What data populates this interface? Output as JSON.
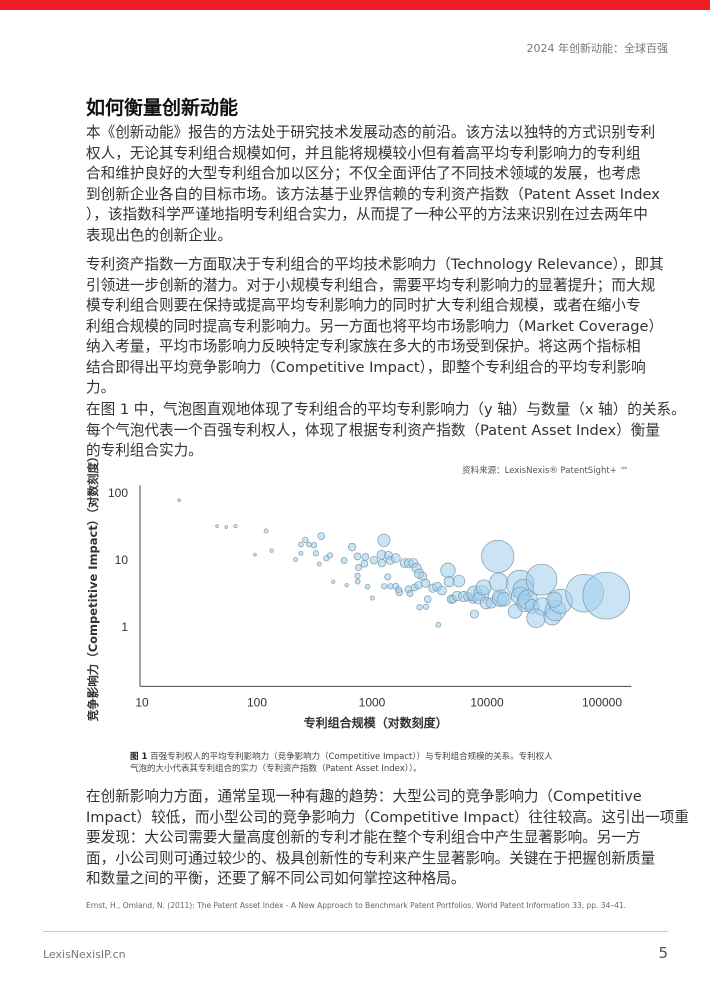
{
  "header": {
    "running_title": "2024 年创新动能：全球百强",
    "accent_color": "#ee1c25"
  },
  "section": {
    "title": "如何衡量创新动能"
  },
  "paragraphs": [
    [
      "本《创新动能》报告的方法处于研究技术发展动态的前沿。该方法以独特的方式识别专利",
      "权人，无论其专利组合规模如何，并且能将规模较小但有着高平均专利影响力的专利组",
      "合和维护良好的大型专利组合加以区分；不仅全面评估了不同技术领域的发展，也考虑",
      "到创新企业各自的目标市场。该方法基于业界信赖的专利资产指数（Patent Asset Index",
      "），该指数科学严谨地指明专利组合实力，从而提了一种公平的方法来识别在过去两年中",
      "表现出色的创新企业。"
    ],
    [
      "专利资产指数一方面取决于专利组合的平均技术影响力（Technology Relevance），即其",
      "引领进一步创新的潜力。对于小规模专利组合，需要平均专利影响力的显著提升；而大规",
      "模专利组合则要在保持或提高平均专利影响力的同时扩大专利组合规模，或者在缩小专",
      "利组合规模的同时提高专利影响力。另一方面也将平均市场影响力（Market Coverage）",
      "纳入考量，平均市场影响力反映特定专利家族在多大的市场受到保护。将这两个指标相",
      "结合即得出平均竞争影响力（Competitive Impact），即整个专利组合的平均专利影响",
      "力。"
    ],
    [
      "在图 1 中，气泡图直观地体现了专利组合的平均专利影响力（y 轴）与数量（x 轴）的关系。",
      "每个气泡代表一个百强专利权人，体现了根据专利资产指数（Patent Asset Index）衡量",
      "的专利组合实力。"
    ],
    [
      "在创新影响力方面，通常呈现一种有趣的趋势：大型公司的竞争影响力（Competitive",
      "Impact）较低，而小型公司的竞争影响力（Competitive Impact）往往较高。这引出一项重",
      "要发现：大公司需要大量高度创新的专利才能在整个专利组合中产生显著影响。另一方",
      "面，小公司则可通过较少的、极具创新性的专利来产生显著影响。关键在于把握创新质量",
      "和数量之间的平衡，还要了解不同公司如何掌控这种格局。"
    ]
  ],
  "figure": {
    "source": "资料来源：LexisNexis® PatentSight+ ™",
    "caption_label": "图 1",
    "caption_line1": " 百强专利权人的平均专利影响力（竞争影响力（Competitive Impact））与专利组合规模的关系。专利权人",
    "caption_line2": "气泡的大小代表其专利组合的实力（专利资产指数（Patent Asset Index））。"
  },
  "chart_data": {
    "type": "scatter",
    "subtype": "bubble",
    "xlabel": "专利组合规模（对数刻度）",
    "ylabel": "竞争影响力（Competitive Impact）（对数刻度）",
    "xscale": "log",
    "yscale": "log",
    "xlim": [
      10,
      180000
    ],
    "ylim": [
      0.13,
      130
    ],
    "xticks": [
      "10",
      "100",
      "1000",
      "10000",
      "100000"
    ],
    "yticks": [
      "1",
      "10",
      "100"
    ],
    "grid": false,
    "bubble_color": "#9fcdee",
    "bubble_stroke": "#7f9aaa",
    "points": [
      {
        "x": 21,
        "y": 78,
        "size": 16
      },
      {
        "x": 45,
        "y": 32,
        "size": 16
      },
      {
        "x": 54,
        "y": 31,
        "size": 16
      },
      {
        "x": 65,
        "y": 32,
        "size": 25
      },
      {
        "x": 120,
        "y": 27,
        "size": 36
      },
      {
        "x": 96,
        "y": 12,
        "size": 16
      },
      {
        "x": 134,
        "y": 13.8,
        "size": 25
      },
      {
        "x": 263,
        "y": 20,
        "size": 64
      },
      {
        "x": 241,
        "y": 17,
        "size": 49
      },
      {
        "x": 283,
        "y": 17,
        "size": 49
      },
      {
        "x": 313,
        "y": 16.6,
        "size": 64
      },
      {
        "x": 362,
        "y": 22.8,
        "size": 100
      },
      {
        "x": 241,
        "y": 12.6,
        "size": 36
      },
      {
        "x": 325,
        "y": 12.6,
        "size": 64
      },
      {
        "x": 216,
        "y": 10.1,
        "size": 36
      },
      {
        "x": 401,
        "y": 10.6,
        "size": 64
      },
      {
        "x": 431,
        "y": 11.7,
        "size": 64
      },
      {
        "x": 347,
        "y": 8.7,
        "size": 36
      },
      {
        "x": 460,
        "y": 4.75,
        "size": 25
      },
      {
        "x": 602,
        "y": 4.2,
        "size": 25
      },
      {
        "x": 572,
        "y": 9.8,
        "size": 81
      },
      {
        "x": 671,
        "y": 15.6,
        "size": 121
      },
      {
        "x": 748,
        "y": 11.3,
        "size": 100
      },
      {
        "x": 877,
        "y": 11.1,
        "size": 100
      },
      {
        "x": 764,
        "y": 7.7,
        "size": 81
      },
      {
        "x": 859,
        "y": 8.8,
        "size": 100
      },
      {
        "x": 748,
        "y": 5.8,
        "size": 64
      },
      {
        "x": 750,
        "y": 4.75,
        "size": 49
      },
      {
        "x": 916,
        "y": 4.0,
        "size": 49
      },
      {
        "x": 1007,
        "y": 2.7,
        "size": 36
      },
      {
        "x": 1040,
        "y": 9.9,
        "size": 121
      },
      {
        "x": 1210,
        "y": 12,
        "size": 169
      },
      {
        "x": 1270,
        "y": 19.7,
        "size": 324
      },
      {
        "x": 1390,
        "y": 11.7,
        "size": 144
      },
      {
        "x": 1440,
        "y": 9.9,
        "size": 144
      },
      {
        "x": 1610,
        "y": 10.7,
        "size": 169
      },
      {
        "x": 1220,
        "y": 9.0,
        "size": 121
      },
      {
        "x": 1370,
        "y": 5.6,
        "size": 81
      },
      {
        "x": 1280,
        "y": 4.05,
        "size": 64
      },
      {
        "x": 1450,
        "y": 4.05,
        "size": 64
      },
      {
        "x": 1610,
        "y": 4.05,
        "size": 81
      },
      {
        "x": 1730,
        "y": 3.3,
        "size": 100
      },
      {
        "x": 1700,
        "y": 3.6,
        "size": 81
      },
      {
        "x": 1920,
        "y": 9.0,
        "size": 169
      },
      {
        "x": 2090,
        "y": 9.0,
        "size": 169
      },
      {
        "x": 2290,
        "y": 9.0,
        "size": 169
      },
      {
        "x": 2440,
        "y": 7.6,
        "size": 196
      },
      {
        "x": 2570,
        "y": 6.25,
        "size": 196
      },
      {
        "x": 2760,
        "y": 5.7,
        "size": 144
      },
      {
        "x": 2920,
        "y": 4.5,
        "size": 144
      },
      {
        "x": 2070,
        "y": 3.65,
        "size": 100
      },
      {
        "x": 2140,
        "y": 3.15,
        "size": 81
      },
      {
        "x": 2350,
        "y": 3.9,
        "size": 100
      },
      {
        "x": 2530,
        "y": 4.2,
        "size": 121
      },
      {
        "x": 3050,
        "y": 2.6,
        "size": 100
      },
      {
        "x": 2590,
        "y": 1.97,
        "size": 64
      },
      {
        "x": 2950,
        "y": 2.0,
        "size": 64
      },
      {
        "x": 3380,
        "y": 3.8,
        "size": 144
      },
      {
        "x": 3690,
        "y": 4.0,
        "size": 169
      },
      {
        "x": 4050,
        "y": 3.5,
        "size": 169
      },
      {
        "x": 3770,
        "y": 1.08,
        "size": 49
      },
      {
        "x": 4580,
        "y": 7.0,
        "size": 441
      },
      {
        "x": 4690,
        "y": 4.75,
        "size": 225
      },
      {
        "x": 4930,
        "y": 2.6,
        "size": 169
      },
      {
        "x": 5040,
        "y": 2.6,
        "size": 121
      },
      {
        "x": 5700,
        "y": 4.85,
        "size": 289
      },
      {
        "x": 5500,
        "y": 2.9,
        "size": 196
      },
      {
        "x": 6270,
        "y": 2.85,
        "size": 225
      },
      {
        "x": 6840,
        "y": 2.85,
        "size": 169
      },
      {
        "x": 7520,
        "y": 2.6,
        "size": 144
      },
      {
        "x": 7780,
        "y": 3.15,
        "size": 484
      },
      {
        "x": 7780,
        "y": 1.56,
        "size": 144
      },
      {
        "x": 8940,
        "y": 3.2,
        "size": 484
      },
      {
        "x": 8490,
        "y": 2.7,
        "size": 289
      },
      {
        "x": 9330,
        "y": 3.9,
        "size": 484
      },
      {
        "x": 9820,
        "y": 2.28,
        "size": 289
      },
      {
        "x": 10900,
        "y": 2.28,
        "size": 225
      },
      {
        "x": 12400,
        "y": 11.3,
        "size": 2209
      },
      {
        "x": 12650,
        "y": 4.65,
        "size": 729
      },
      {
        "x": 12900,
        "y": 2.6,
        "size": 400
      },
      {
        "x": 13100,
        "y": 2.7,
        "size": 576
      },
      {
        "x": 14100,
        "y": 2.6,
        "size": 400
      },
      {
        "x": 17500,
        "y": 1.71,
        "size": 400
      },
      {
        "x": 19400,
        "y": 4.4,
        "size": 1600
      },
      {
        "x": 20700,
        "y": 3.6,
        "size": 900
      },
      {
        "x": 19500,
        "y": 2.9,
        "size": 676
      },
      {
        "x": 21500,
        "y": 2.28,
        "size": 625
      },
      {
        "x": 22600,
        "y": 2.56,
        "size": 784
      },
      {
        "x": 24700,
        "y": 2.03,
        "size": 400
      },
      {
        "x": 29800,
        "y": 5.1,
        "size": 2025
      },
      {
        "x": 30200,
        "y": 2.03,
        "size": 625
      },
      {
        "x": 26700,
        "y": 1.35,
        "size": 729
      },
      {
        "x": 37000,
        "y": 1.44,
        "size": 625
      },
      {
        "x": 39300,
        "y": 1.77,
        "size": 900
      },
      {
        "x": 43500,
        "y": 2.42,
        "size": 1225
      },
      {
        "x": 70600,
        "y": 3.2,
        "size": 3025
      },
      {
        "x": 109000,
        "y": 2.94,
        "size": 4624
      },
      {
        "x": 38400,
        "y": 2.56,
        "size": 484
      }
    ]
  },
  "reference": "Ernst, H., Omland, N. (2011): The Patent Asset Index - A New Approach to Benchmark Patent Portfolios. World Patent Information 33, pp. 34–41.",
  "footer": {
    "site": "LexisNexisIP.cn",
    "page_number": "5"
  }
}
